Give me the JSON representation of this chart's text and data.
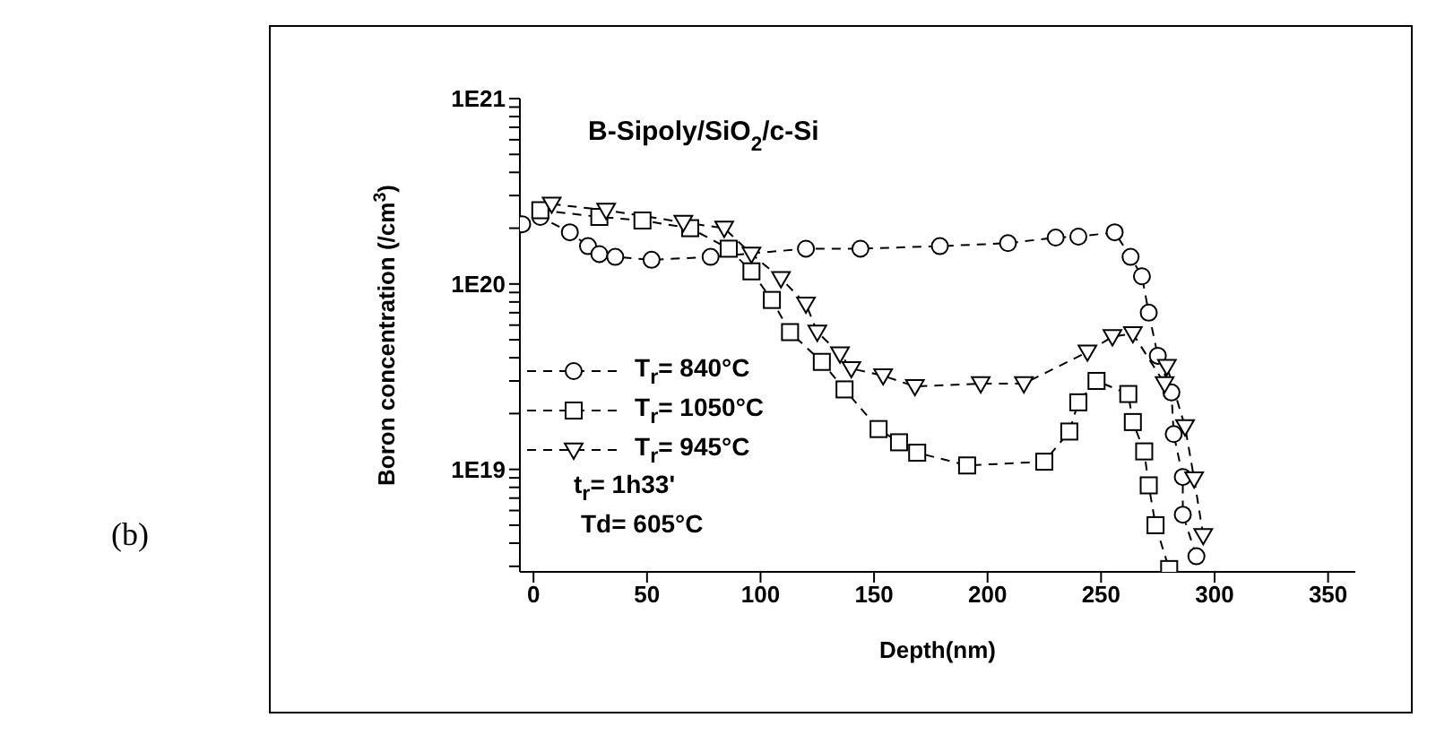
{
  "chart_data": {
    "type": "line",
    "title": "B-Sipoly/SiO$_{2}$/c-Si",
    "xlabel": "Depth(nm)",
    "ylabel": "Boron concentration (/cm$^{3}$)",
    "annotations": [
      "t$_{r}$= 1h33'",
      "Td= 605°C",
      "(b)"
    ],
    "xlim": [
      -6,
      362
    ],
    "xticks": [
      0,
      50,
      100,
      150,
      200,
      250,
      300,
      350
    ],
    "ylim": [
      2.8e+18,
      1e+21
    ],
    "log": true,
    "yticks": [
      {
        "value": 3e+18,
        "label": null
      },
      {
        "value": 4e+18,
        "label": null
      },
      {
        "value": 5e+18,
        "label": null
      },
      {
        "value": 6e+18,
        "label": null
      },
      {
        "value": 7e+18,
        "label": null
      },
      {
        "value": 8e+18,
        "label": null
      },
      {
        "value": 9e+18,
        "label": null
      },
      {
        "value": 1e+19,
        "label": "1E19"
      },
      {
        "value": 2e+19,
        "label": null
      },
      {
        "value": 3e+19,
        "label": null
      },
      {
        "value": 4e+19,
        "label": null
      },
      {
        "value": 5e+19,
        "label": null
      },
      {
        "value": 6e+19,
        "label": null
      },
      {
        "value": 7e+19,
        "label": null
      },
      {
        "value": 8e+19,
        "label": null
      },
      {
        "value": 9e+19,
        "label": null
      },
      {
        "value": 1e+20,
        "label": "1E20"
      },
      {
        "value": 2e+20,
        "label": null
      },
      {
        "value": 3e+20,
        "label": null
      },
      {
        "value": 4e+20,
        "label": null
      },
      {
        "value": 5e+20,
        "label": null
      },
      {
        "value": 6e+20,
        "label": null
      },
      {
        "value": 7e+20,
        "label": null
      },
      {
        "value": 8e+20,
        "label": null
      },
      {
        "value": 9e+20,
        "label": null
      },
      {
        "value": 1e+21,
        "label": "1E21"
      }
    ],
    "grid": false,
    "legend": "bottom left",
    "line_style": "dashed",
    "series": [
      {
        "name": "T$_{r}$= 840°C",
        "color": "#000000",
        "marker": "circle",
        "x": [
          -5,
          3,
          16,
          24,
          29,
          36,
          52,
          78,
          120,
          144,
          179,
          209,
          230,
          240,
          256,
          263,
          268,
          271,
          275,
          281,
          282,
          286,
          286,
          292
        ],
        "values": [
          2.1e+20,
          2.3e+20,
          1.9e+20,
          1.6e+20,
          1.45e+20,
          1.4e+20,
          1.35e+20,
          1.4e+20,
          1.55e+20,
          1.55e+20,
          1.6e+20,
          1.66e+20,
          1.78e+20,
          1.8e+20,
          1.9e+20,
          1.4e+20,
          1.1e+20,
          7e+19,
          4.1e+19,
          2.6e+19,
          1.55e+19,
          9.1e+18,
          5.7e+18,
          3.4e+18
        ]
      },
      {
        "name": "T$_{r}$= 1050°C",
        "color": "#000000",
        "marker": "square",
        "x": [
          3,
          29,
          48,
          69,
          86,
          96,
          105,
          113,
          127,
          137,
          152,
          161,
          169,
          191,
          225,
          236,
          240,
          248,
          262,
          264,
          269,
          271,
          274,
          280
        ],
        "values": [
          2.5e+20,
          2.3e+20,
          2.2e+20,
          2e+20,
          1.55e+20,
          1.17e+20,
          8.2e+19,
          5.5e+19,
          3.8e+19,
          2.7e+19,
          1.65e+19,
          1.4e+19,
          1.23e+19,
          1.05e+19,
          1.1e+19,
          1.6e+19,
          2.3e+19,
          3e+19,
          2.55e+19,
          1.8e+19,
          1.25e+19,
          8.2e+18,
          5e+18,
          2.9e+18
        ]
      },
      {
        "name": "T$_{r}$= 945°C",
        "color": "#000000",
        "marker": "triangle",
        "x": [
          8,
          32,
          66,
          84,
          96,
          109,
          120,
          125,
          135,
          140,
          154,
          168,
          197,
          216,
          244,
          255,
          264,
          278,
          279,
          287,
          291,
          295
        ],
        "values": [
          2.7e+20,
          2.5e+20,
          2.15e+20,
          2e+20,
          1.45e+20,
          1.07e+20,
          7.8e+19,
          5.5e+19,
          4.2e+19,
          3.5e+19,
          3.2e+19,
          2.8e+19,
          2.9e+19,
          2.9e+19,
          4.3e+19,
          5.2e+19,
          5.4e+19,
          2.9e+19,
          3.6e+19,
          1.7e+19,
          8.9e+18,
          4.4e+18
        ]
      }
    ]
  }
}
